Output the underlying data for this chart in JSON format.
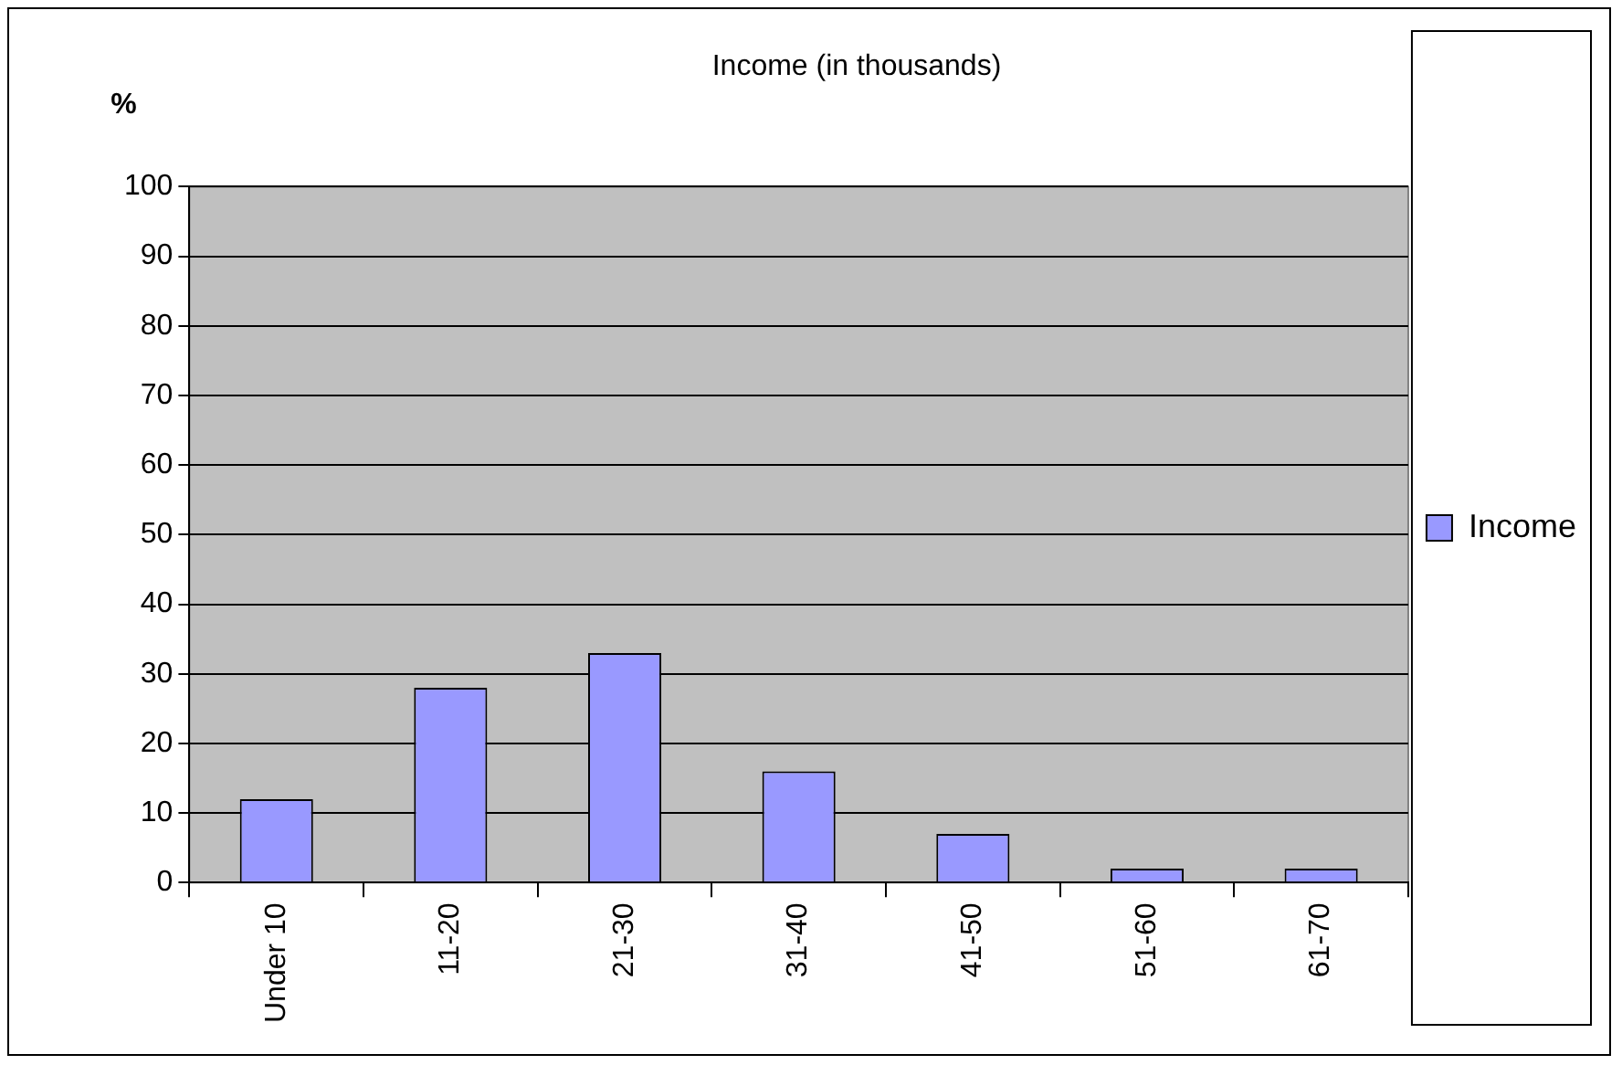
{
  "chart_data": {
    "type": "bar",
    "title": "Income (in thousands)",
    "ylabel": "%",
    "categories": [
      "Under 10",
      "11-20",
      "21-30",
      "31-40",
      "41-50",
      "51-60",
      "61-70"
    ],
    "series": [
      {
        "name": "Income",
        "color": "#9999ff",
        "values": [
          12,
          28,
          33,
          16,
          7,
          2,
          2
        ]
      }
    ],
    "ylim": [
      0,
      100
    ],
    "yticks": [
      0,
      10,
      20,
      30,
      40,
      50,
      60,
      70,
      80,
      90,
      100
    ],
    "grid": "y",
    "legend": "right"
  }
}
